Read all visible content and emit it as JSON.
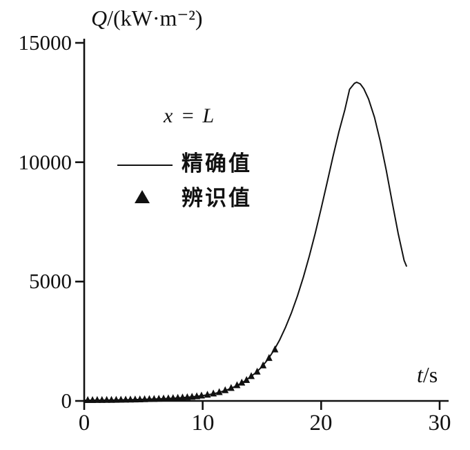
{
  "figure": {
    "y_axis": {
      "var": "Q",
      "units": "/(kW·m⁻²)"
    },
    "x_axis": {
      "var": "t",
      "units": "/s"
    },
    "annotation": "x = L",
    "legend": [
      {
        "icon": "line-sample",
        "label": "精确值"
      },
      {
        "icon": "triangle-marker",
        "label": "辨识值"
      }
    ]
  },
  "chart_data": {
    "type": "line",
    "title": "",
    "xlabel": "t/s",
    "ylabel": "Q/(kW·m⁻²)",
    "xlim": [
      0,
      30
    ],
    "ylim": [
      0,
      15000
    ],
    "xticks": [
      0,
      10,
      20,
      30
    ],
    "yticks": [
      0,
      5000,
      10000,
      15000
    ],
    "grid": false,
    "legend_position": "upper-left-inside",
    "line_color": "#111111",
    "marker_color": "#111111",
    "series": [
      {
        "name": "精确值",
        "kind": "line",
        "points": [
          [
            0,
            28
          ],
          [
            0.5,
            29
          ],
          [
            1,
            31
          ],
          [
            1.5,
            33
          ],
          [
            2,
            36
          ],
          [
            2.5,
            39
          ],
          [
            3,
            42
          ],
          [
            3.5,
            46
          ],
          [
            4,
            51
          ],
          [
            4.5,
            57
          ],
          [
            5,
            63
          ],
          [
            5.5,
            71
          ],
          [
            6,
            79
          ],
          [
            6.5,
            89
          ],
          [
            7,
            100
          ],
          [
            7.5,
            112
          ],
          [
            8,
            127
          ],
          [
            8.5,
            144
          ],
          [
            9,
            164
          ],
          [
            9.5,
            190
          ],
          [
            10,
            222
          ],
          [
            10.5,
            261
          ],
          [
            11,
            311
          ],
          [
            11.5,
            374
          ],
          [
            12,
            452
          ],
          [
            12.5,
            550
          ],
          [
            13,
            672
          ],
          [
            13.5,
            818
          ],
          [
            14,
            998
          ],
          [
            14.5,
            1185
          ],
          [
            15,
            1430
          ],
          [
            15.5,
            1740
          ],
          [
            16,
            2110
          ],
          [
            16.5,
            2560
          ],
          [
            17,
            3090
          ],
          [
            17.5,
            3700
          ],
          [
            18,
            4400
          ],
          [
            18.5,
            5190
          ],
          [
            19,
            6070
          ],
          [
            19.5,
            7030
          ],
          [
            20,
            8060
          ],
          [
            20.5,
            9140
          ],
          [
            21,
            10240
          ],
          [
            21.5,
            11280
          ],
          [
            22,
            12200
          ],
          [
            22.4,
            13050
          ],
          [
            22.8,
            13300
          ],
          [
            23,
            13350
          ],
          [
            23.3,
            13280
          ],
          [
            23.6,
            13080
          ],
          [
            24,
            12650
          ],
          [
            24.5,
            11880
          ],
          [
            25,
            10850
          ],
          [
            25.5,
            9640
          ],
          [
            26,
            8320
          ],
          [
            26.5,
            7020
          ],
          [
            27,
            5890
          ],
          [
            27.2,
            5650
          ]
        ]
      },
      {
        "name": "辨识值",
        "kind": "scatter",
        "marker": "triangle",
        "points": [
          [
            0.3,
            29
          ],
          [
            0.7,
            30
          ],
          [
            1.1,
            32
          ],
          [
            1.5,
            33
          ],
          [
            1.9,
            36
          ],
          [
            2.3,
            38
          ],
          [
            2.7,
            41
          ],
          [
            3.1,
            43
          ],
          [
            3.5,
            46
          ],
          [
            3.9,
            50
          ],
          [
            4.3,
            55
          ],
          [
            4.7,
            59
          ],
          [
            5.1,
            64
          ],
          [
            5.5,
            71
          ],
          [
            5.9,
            77
          ],
          [
            6.3,
            85
          ],
          [
            6.7,
            93
          ],
          [
            7.1,
            102
          ],
          [
            7.5,
            112
          ],
          [
            7.9,
            124
          ],
          [
            8.3,
            139
          ],
          [
            8.7,
            150
          ],
          [
            9.1,
            168
          ],
          [
            9.5,
            190
          ],
          [
            9.9,
            216
          ],
          [
            10.4,
            255
          ],
          [
            10.9,
            305
          ],
          [
            11.4,
            362
          ],
          [
            11.9,
            440
          ],
          [
            12.4,
            535
          ],
          [
            12.9,
            650
          ],
          [
            13.3,
            760
          ],
          [
            13.7,
            870
          ],
          [
            14.1,
            1030
          ],
          [
            14.6,
            1220
          ],
          [
            15.1,
            1480
          ],
          [
            15.6,
            1790
          ],
          [
            16.1,
            2150
          ]
        ]
      }
    ]
  }
}
